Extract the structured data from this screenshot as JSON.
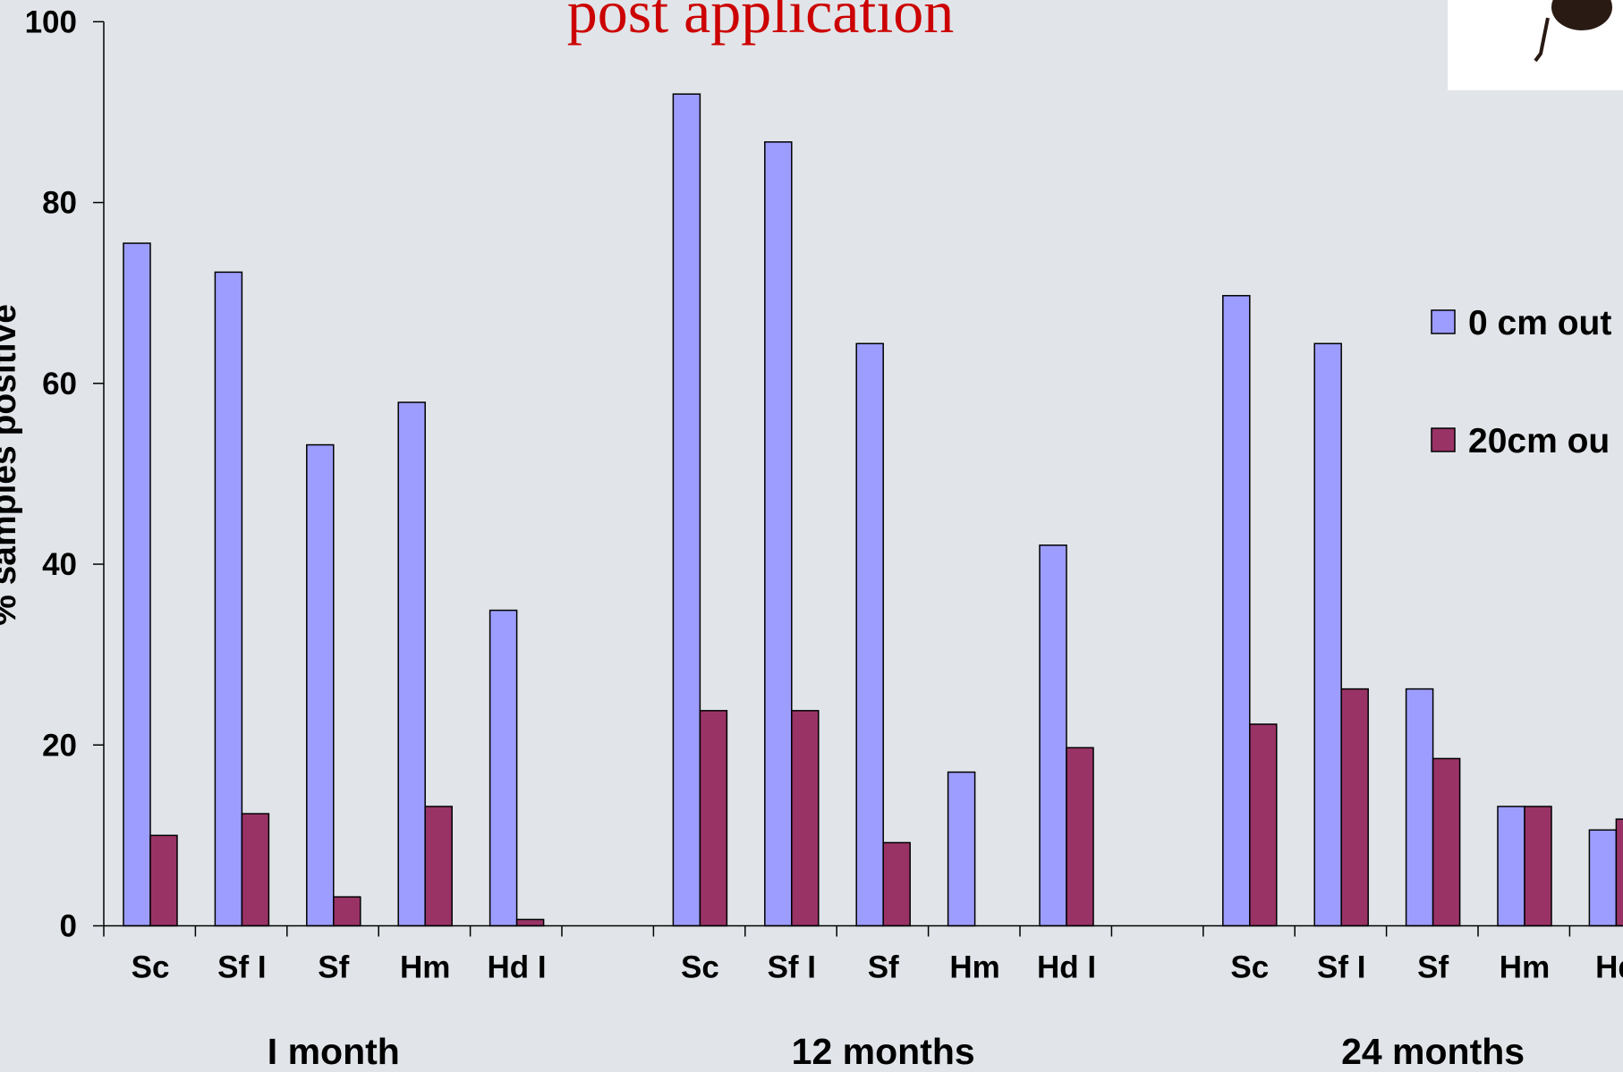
{
  "chart_data": {
    "type": "bar",
    "title": "post application",
    "y_label": "% samples positive",
    "categories": [
      "Sc",
      "Sf I",
      "Sf",
      "Hm",
      "Hd I",
      null,
      "Sc",
      "Sf I",
      "Sf",
      "Hm",
      "Hd I",
      null,
      "Sc",
      "Sf I",
      "Sf",
      "Hm",
      "Hd"
    ],
    "groups": [
      "I month",
      "12 months",
      "24 months"
    ],
    "series": [
      {
        "name": "0 cm out",
        "color": "#9d9dff",
        "values": [
          75.5,
          72.3,
          53.2,
          57.9,
          34.9,
          null,
          92.0,
          86.7,
          64.4,
          17.0,
          42.1,
          null,
          69.7,
          64.4,
          26.2,
          13.2,
          10.6
        ]
      },
      {
        "name": "20cm ou",
        "color": "#993366",
        "values": [
          10.0,
          12.4,
          3.2,
          13.2,
          0.7,
          null,
          23.8,
          23.8,
          9.2,
          0,
          19.7,
          null,
          22.3,
          26.2,
          18.5,
          13.2,
          11.8
        ]
      }
    ],
    "ylim": [
      0,
      100
    ],
    "yticks": [
      0,
      20,
      40,
      60,
      80,
      100
    ]
  }
}
